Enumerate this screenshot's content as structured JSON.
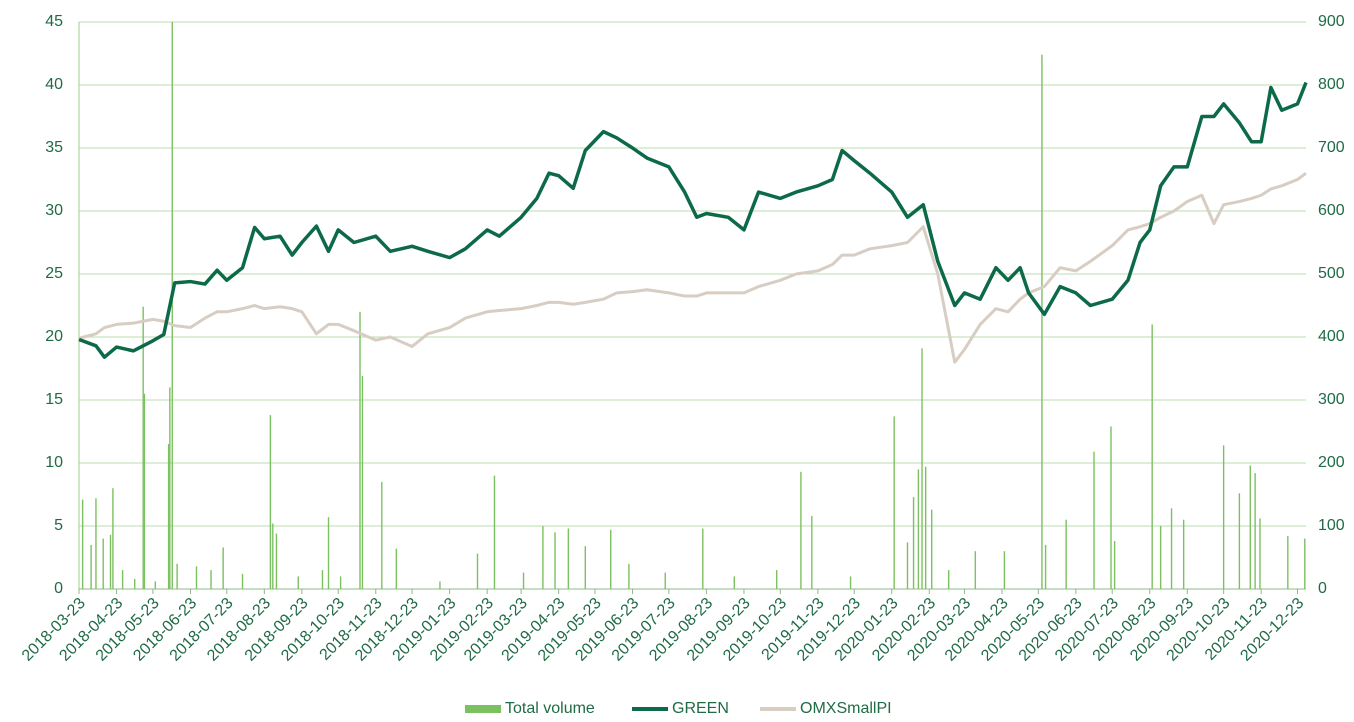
{
  "chart_data": {
    "type": "line",
    "xlim": [
      "2018-03-23",
      "2020-12-30"
    ],
    "xticks": [
      "2018-03-23",
      "2018-04-23",
      "2018-05-23",
      "2018-06-23",
      "2018-07-23",
      "2018-08-23",
      "2018-09-23",
      "2018-10-23",
      "2018-11-23",
      "2018-12-23",
      "2019-01-23",
      "2019-02-23",
      "2019-03-23",
      "2019-04-23",
      "2019-05-23",
      "2019-06-23",
      "2019-07-23",
      "2019-08-23",
      "2019-09-23",
      "2019-10-23",
      "2019-11-23",
      "2019-12-23",
      "2020-01-23",
      "2020-02-23",
      "2020-03-23",
      "2020-04-23",
      "2020-05-23",
      "2020-06-23",
      "2020-07-23",
      "2020-08-23",
      "2020-09-23",
      "2020-10-23",
      "2020-11-23",
      "2020-12-23"
    ],
    "ylim": [
      0,
      45
    ],
    "yticks": [
      0,
      5,
      10,
      15,
      20,
      25,
      30,
      35,
      40,
      45
    ],
    "y2lim": [
      0,
      900
    ],
    "y2ticks": [
      0,
      100,
      200,
      300,
      400,
      500,
      600,
      700,
      800,
      900
    ],
    "grid": true,
    "legend": "bottom",
    "series": [
      {
        "name": "Total volume",
        "type": "bar",
        "color": "#7cc160",
        "x": [
          "2018-03-26",
          "2018-04-02",
          "2018-04-06",
          "2018-04-12",
          "2018-04-18",
          "2018-04-20",
          "2018-04-28",
          "2018-05-08",
          "2018-05-15",
          "2018-05-16",
          "2018-05-25",
          "2018-06-05",
          "2018-06-06",
          "2018-06-08",
          "2018-06-12",
          "2018-06-28",
          "2018-07-10",
          "2018-07-20",
          "2018-08-05",
          "2018-08-28",
          "2018-08-30",
          "2018-09-02",
          "2018-09-20",
          "2018-10-10",
          "2018-10-15",
          "2018-10-25",
          "2018-11-10",
          "2018-11-12",
          "2018-11-28",
          "2018-12-10",
          "2019-01-15",
          "2019-02-15",
          "2019-03-01",
          "2019-03-25",
          "2019-04-10",
          "2019-04-20",
          "2019-05-01",
          "2019-05-15",
          "2019-06-05",
          "2019-06-20",
          "2019-07-20",
          "2019-08-20",
          "2019-09-15",
          "2019-10-20",
          "2019-11-09",
          "2019-11-18",
          "2019-12-20",
          "2020-01-25",
          "2020-02-05",
          "2020-02-10",
          "2020-02-14",
          "2020-02-17",
          "2020-02-20",
          "2020-02-25",
          "2020-03-10",
          "2020-04-01",
          "2020-04-25",
          "2020-05-26",
          "2020-05-29",
          "2020-06-15",
          "2020-07-08",
          "2020-07-22",
          "2020-07-25",
          "2020-08-25",
          "2020-09-01",
          "2020-09-10",
          "2020-09-20",
          "2020-10-23",
          "2020-11-05",
          "2020-11-14",
          "2020-11-18",
          "2020-11-22",
          "2020-12-15",
          "2020-12-29"
        ],
        "values": [
          7.1,
          3.5,
          7.2,
          4.0,
          4.3,
          8.0,
          1.5,
          0.8,
          22.4,
          15.5,
          0.6,
          11.5,
          16.0,
          45,
          2.0,
          1.8,
          1.5,
          3.3,
          1.2,
          13.8,
          5.2,
          4.4,
          1.0,
          1.5,
          5.7,
          1.0,
          22.0,
          16.9,
          8.5,
          3.2,
          0.6,
          2.8,
          9.0,
          1.3,
          5.0,
          4.5,
          4.8,
          3.4,
          4.7,
          2.0,
          1.3,
          4.8,
          1.0,
          1.5,
          9.3,
          5.8,
          1.0,
          13.7,
          3.7,
          7.3,
          9.5,
          19.1,
          9.7,
          6.3,
          1.5,
          3.0,
          3.0,
          42.4,
          3.5,
          5.5,
          10.9,
          12.9,
          3.8,
          21.0,
          5.0,
          6.4,
          5.5,
          11.4,
          7.6,
          9.8,
          9.2,
          5.6,
          4.2,
          4.0
        ]
      },
      {
        "name": "GREEN",
        "type": "line",
        "color": "#0d6a48",
        "x": [
          "2018-03-23",
          "2018-04-06",
          "2018-04-13",
          "2018-04-23",
          "2018-05-07",
          "2018-05-23",
          "2018-06-01",
          "2018-06-10",
          "2018-06-23",
          "2018-07-05",
          "2018-07-15",
          "2018-07-23",
          "2018-08-05",
          "2018-08-15",
          "2018-08-23",
          "2018-09-05",
          "2018-09-15",
          "2018-09-23",
          "2018-10-05",
          "2018-10-15",
          "2018-10-23",
          "2018-11-05",
          "2018-11-23",
          "2018-12-05",
          "2018-12-23",
          "2019-01-05",
          "2019-01-23",
          "2019-02-05",
          "2019-02-23",
          "2019-03-05",
          "2019-03-23",
          "2019-04-05",
          "2019-04-15",
          "2019-04-23",
          "2019-05-05",
          "2019-05-15",
          "2019-05-30",
          "2019-06-10",
          "2019-06-23",
          "2019-07-05",
          "2019-07-23",
          "2019-08-05",
          "2019-08-15",
          "2019-08-23",
          "2019-09-10",
          "2019-09-23",
          "2019-10-05",
          "2019-10-23",
          "2019-11-05",
          "2019-11-23",
          "2019-12-05",
          "2019-12-13",
          "2019-12-23",
          "2020-01-05",
          "2020-01-23",
          "2020-02-05",
          "2020-02-18",
          "2020-03-01",
          "2020-03-15",
          "2020-03-23",
          "2020-04-05",
          "2020-04-18",
          "2020-04-28",
          "2020-05-08",
          "2020-05-15",
          "2020-05-28",
          "2020-06-10",
          "2020-06-23",
          "2020-07-05",
          "2020-07-23",
          "2020-08-05",
          "2020-08-15",
          "2020-08-23",
          "2020-09-01",
          "2020-09-12",
          "2020-09-23",
          "2020-10-05",
          "2020-10-15",
          "2020-10-23",
          "2020-11-05",
          "2020-11-15",
          "2020-11-23",
          "2020-12-01",
          "2020-12-10",
          "2020-12-23",
          "2020-12-30"
        ],
        "values": [
          19.8,
          19.3,
          18.4,
          19.2,
          18.9,
          19.7,
          20.2,
          24.3,
          24.4,
          24.2,
          25.3,
          24.5,
          25.5,
          28.7,
          27.8,
          28.0,
          26.5,
          27.5,
          28.8,
          26.8,
          28.5,
          27.5,
          28.0,
          26.8,
          27.2,
          26.8,
          26.3,
          27.0,
          28.5,
          28.0,
          29.5,
          31.0,
          33.0,
          32.8,
          31.8,
          34.8,
          36.3,
          35.8,
          35.0,
          34.2,
          33.5,
          31.5,
          29.5,
          29.8,
          29.5,
          28.5,
          31.5,
          31.0,
          31.5,
          32.0,
          32.5,
          34.8,
          34.0,
          33.0,
          31.5,
          29.5,
          30.5,
          26.0,
          22.5,
          23.5,
          23.0,
          25.5,
          24.5,
          25.5,
          23.5,
          21.8,
          24.0,
          23.5,
          22.5,
          23.0,
          24.5,
          27.5,
          28.5,
          32.0,
          33.5,
          33.5,
          37.5,
          37.5,
          38.5,
          37.0,
          35.5,
          35.5,
          39.8,
          38.0,
          38.5,
          40.2
        ]
      },
      {
        "name": "OMXSmallPI",
        "type": "line",
        "color": "#d8cdc3",
        "axis": "y2",
        "x": [
          "2018-03-23",
          "2018-04-06",
          "2018-04-13",
          "2018-04-23",
          "2018-05-07",
          "2018-05-23",
          "2018-06-01",
          "2018-06-10",
          "2018-06-23",
          "2018-07-05",
          "2018-07-15",
          "2018-07-23",
          "2018-08-05",
          "2018-08-15",
          "2018-08-23",
          "2018-09-05",
          "2018-09-15",
          "2018-09-23",
          "2018-10-05",
          "2018-10-15",
          "2018-10-23",
          "2018-11-05",
          "2018-11-23",
          "2018-12-05",
          "2018-12-23",
          "2019-01-05",
          "2019-01-23",
          "2019-02-05",
          "2019-02-23",
          "2019-03-05",
          "2019-03-23",
          "2019-04-05",
          "2019-04-15",
          "2019-04-23",
          "2019-05-05",
          "2019-05-15",
          "2019-05-30",
          "2019-06-10",
          "2019-06-23",
          "2019-07-05",
          "2019-07-23",
          "2019-08-05",
          "2019-08-15",
          "2019-08-23",
          "2019-09-10",
          "2019-09-23",
          "2019-10-05",
          "2019-10-23",
          "2019-11-05",
          "2019-11-23",
          "2019-12-05",
          "2019-12-13",
          "2019-12-23",
          "2020-01-05",
          "2020-01-23",
          "2020-02-05",
          "2020-02-18",
          "2020-03-01",
          "2020-03-15",
          "2020-03-23",
          "2020-04-05",
          "2020-04-18",
          "2020-04-28",
          "2020-05-08",
          "2020-05-15",
          "2020-05-28",
          "2020-06-10",
          "2020-06-23",
          "2020-07-05",
          "2020-07-23",
          "2020-08-05",
          "2020-08-15",
          "2020-08-23",
          "2020-09-01",
          "2020-09-12",
          "2020-09-23",
          "2020-10-05",
          "2020-10-15",
          "2020-10-23",
          "2020-11-05",
          "2020-11-15",
          "2020-11-23",
          "2020-12-01",
          "2020-12-10",
          "2020-12-23",
          "2020-12-30"
        ],
        "values": [
          398,
          405,
          415,
          420,
          422,
          428,
          425,
          418,
          415,
          430,
          440,
          440,
          445,
          450,
          445,
          448,
          445,
          440,
          405,
          420,
          420,
          410,
          395,
          400,
          385,
          405,
          415,
          430,
          440,
          442,
          445,
          450,
          455,
          455,
          452,
          455,
          460,
          470,
          472,
          475,
          470,
          465,
          465,
          470,
          470,
          470,
          480,
          490,
          500,
          505,
          515,
          530,
          530,
          540,
          545,
          550,
          575,
          500,
          360,
          380,
          420,
          445,
          440,
          460,
          470,
          480,
          510,
          505,
          520,
          545,
          570,
          575,
          580,
          590,
          600,
          615,
          625,
          580,
          610,
          615,
          620,
          625,
          635,
          640,
          650,
          660
        ]
      }
    ]
  }
}
